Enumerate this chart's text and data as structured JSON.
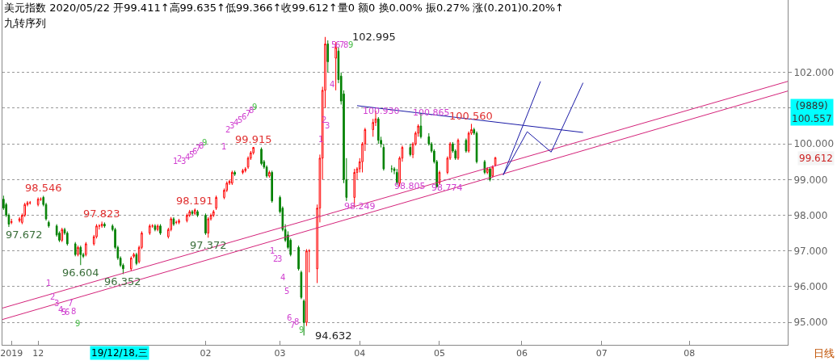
{
  "chart_data": {
    "type": "candlestick",
    "title": "美元指数 2020/05/22 开99.411↑高99.635↑低99.366↑收99.612↑量0 额0 换0.00% 振0.27% 涨(0.201)0.20%↑",
    "subtitle": "九转序列",
    "x": [
      "2019-11-19",
      "2019-11-20",
      "2019-11-21",
      "2019-11-22",
      "2019-11-25",
      "2019-11-26",
      "2019-11-27",
      "2019-11-28",
      "2019-11-29",
      "2019-12-02",
      "2019-12-03",
      "2019-12-04",
      "2019-12-05",
      "2019-12-06",
      "2019-12-09",
      "2019-12-10",
      "2019-12-11",
      "2019-12-12",
      "2019-12-13",
      "2019-12-16",
      "2019-12-17",
      "2019-12-18",
      "2019-12-19",
      "2019-12-20",
      "2019-12-23",
      "2019-12-24",
      "2019-12-25",
      "2019-12-26",
      "2019-12-27",
      "2019-12-30",
      "2019-12-31",
      "2020-01-01",
      "2020-01-02",
      "2020-01-03",
      "2020-01-06",
      "2020-01-07",
      "2020-01-08",
      "2020-01-09",
      "2020-01-10",
      "2020-01-13",
      "2020-01-14",
      "2020-01-15",
      "2020-01-16",
      "2020-01-17",
      "2020-01-20",
      "2020-01-21",
      "2020-01-22",
      "2020-01-23",
      "2020-01-24",
      "2020-01-27",
      "2020-01-28",
      "2020-01-29",
      "2020-01-30",
      "2020-01-31",
      "2020-02-03",
      "2020-02-04",
      "2020-02-05",
      "2020-02-06",
      "2020-02-07",
      "2020-02-10",
      "2020-02-11",
      "2020-02-12",
      "2020-02-13",
      "2020-02-14",
      "2020-02-17",
      "2020-02-18",
      "2020-02-19",
      "2020-02-20",
      "2020-02-21",
      "2020-02-24",
      "2020-02-25",
      "2020-02-26",
      "2020-02-27",
      "2020-02-28",
      "2020-03-02",
      "2020-03-03",
      "2020-03-04",
      "2020-03-05",
      "2020-03-06",
      "2020-03-09",
      "2020-03-10",
      "2020-03-11",
      "2020-03-12",
      "2020-03-13",
      "2020-03-16",
      "2020-03-17",
      "2020-03-18",
      "2020-03-19",
      "2020-03-20",
      "2020-03-23",
      "2020-03-24",
      "2020-03-25",
      "2020-03-26",
      "2020-03-27",
      "2020-03-30",
      "2020-03-31",
      "2020-04-01",
      "2020-04-02",
      "2020-04-03",
      "2020-04-06",
      "2020-04-07",
      "2020-04-08",
      "2020-04-09",
      "2020-04-10",
      "2020-04-13",
      "2020-04-14",
      "2020-04-15",
      "2020-04-16",
      "2020-04-17",
      "2020-04-20",
      "2020-04-21",
      "2020-04-22",
      "2020-04-23",
      "2020-04-24",
      "2020-04-27",
      "2020-04-28",
      "2020-04-29",
      "2020-04-30",
      "2020-05-01",
      "2020-05-04",
      "2020-05-05",
      "2020-05-06",
      "2020-05-07",
      "2020-05-08",
      "2020-05-11",
      "2020-05-12",
      "2020-05-13",
      "2020-05-14",
      "2020-05-15",
      "2020-05-18",
      "2020-05-19",
      "2020-05-20",
      "2020-05-21",
      "2020-05-22"
    ],
    "ohlc": [
      [
        98.45,
        98.55,
        98.15,
        98.2
      ],
      [
        98.3,
        98.35,
        97.95,
        98.0
      ],
      [
        98.0,
        98.05,
        97.672,
        97.75
      ],
      [
        97.8,
        97.9,
        97.75,
        97.82
      ],
      [
        97.85,
        97.95,
        97.8,
        97.9
      ],
      [
        97.8,
        98.05,
        97.75,
        98.0
      ],
      [
        98.0,
        98.35,
        97.95,
        98.3
      ],
      [
        98.3,
        98.4,
        98.25,
        98.35
      ],
      [
        98.35,
        98.4,
        98.3,
        98.35
      ],
      [
        98.3,
        98.5,
        98.25,
        98.45
      ],
      [
        98.45,
        98.5,
        98.4,
        98.45
      ],
      [
        98.5,
        98.546,
        98.25,
        98.3
      ],
      [
        98.3,
        98.35,
        97.85,
        97.9
      ],
      [
        97.8,
        97.85,
        97.65,
        97.7
      ],
      [
        97.7,
        97.75,
        97.4,
        97.45
      ],
      [
        97.5,
        97.55,
        97.25,
        97.3
      ],
      [
        97.3,
        97.65,
        97.25,
        97.6
      ],
      [
        97.6,
        97.65,
        97.45,
        97.5
      ],
      [
        97.5,
        97.55,
        97.15,
        97.2
      ],
      [
        97.2,
        97.25,
        96.85,
        96.9
      ],
      [
        96.9,
        97.15,
        96.85,
        97.1
      ],
      [
        97.1,
        97.15,
        96.604,
        96.9
      ],
      [
        96.9,
        96.95,
        96.8,
        96.85
      ],
      [
        96.9,
        97.25,
        96.85,
        97.2
      ],
      [
        97.2,
        97.45,
        97.15,
        97.4
      ],
      [
        97.4,
        97.75,
        97.35,
        97.7
      ],
      [
        97.7,
        97.75,
        97.6,
        97.7
      ],
      [
        97.7,
        97.823,
        97.65,
        97.75
      ],
      [
        97.75,
        97.8,
        97.65,
        97.7
      ],
      [
        97.7,
        97.75,
        97.55,
        97.6
      ],
      [
        97.6,
        97.65,
        97.05,
        97.1
      ],
      [
        97.1,
        97.15,
        96.75,
        96.8
      ],
      [
        96.8,
        96.85,
        96.55,
        96.6
      ],
      [
        96.6,
        96.65,
        96.352,
        96.5
      ],
      [
        96.5,
        96.85,
        96.45,
        96.8
      ],
      [
        96.85,
        96.95,
        96.8,
        96.9
      ],
      [
        96.9,
        96.95,
        96.6,
        96.65
      ],
      [
        96.7,
        97.15,
        96.65,
        97.1
      ],
      [
        97.1,
        97.55,
        97.05,
        97.5
      ],
      [
        97.5,
        97.75,
        97.45,
        97.7
      ],
      [
        97.7,
        97.75,
        97.65,
        97.7
      ],
      [
        97.7,
        97.75,
        97.55,
        97.6
      ],
      [
        97.6,
        97.75,
        97.55,
        97.7
      ],
      [
        97.7,
        97.75,
        97.45,
        97.5
      ],
      [
        97.4,
        97.65,
        97.35,
        97.6
      ],
      [
        97.6,
        97.95,
        97.55,
        97.9
      ],
      [
        97.9,
        97.95,
        97.7,
        97.75
      ],
      [
        97.8,
        97.85,
        97.75,
        97.8
      ],
      [
        97.8,
        97.9,
        97.75,
        97.85
      ],
      [
        97.85,
        98.05,
        97.8,
        98.0
      ],
      [
        98.0,
        98.15,
        97.95,
        98.1
      ],
      [
        98.1,
        98.15,
        98.0,
        98.05
      ],
      [
        98.05,
        98.191,
        98.0,
        98.15
      ],
      [
        98.1,
        98.15,
        97.95,
        98.0
      ],
      [
        98.0,
        98.05,
        97.45,
        97.5
      ],
      [
        97.5,
        97.95,
        97.372,
        97.9
      ],
      [
        97.9,
        98.05,
        97.85,
        98.0
      ],
      [
        98.0,
        98.15,
        97.95,
        98.1
      ],
      [
        98.2,
        98.55,
        98.15,
        98.5
      ],
      [
        98.5,
        98.75,
        98.45,
        98.7
      ],
      [
        98.7,
        98.95,
        98.65,
        98.9
      ],
      [
        98.9,
        99.0,
        98.85,
        98.95
      ],
      [
        98.9,
        99.25,
        98.85,
        99.2
      ],
      [
        99.2,
        99.25,
        99.1,
        99.15
      ],
      [
        99.2,
        99.3,
        99.15,
        99.25
      ],
      [
        99.25,
        99.35,
        99.2,
        99.3
      ],
      [
        99.35,
        99.65,
        99.3,
        99.6
      ],
      [
        99.6,
        99.8,
        99.55,
        99.75
      ],
      [
        99.75,
        99.915,
        99.7,
        99.9
      ],
      [
        99.85,
        99.9,
        99.4,
        99.45
      ],
      [
        99.5,
        99.55,
        99.3,
        99.35
      ],
      [
        99.35,
        99.4,
        99.05,
        99.1
      ],
      [
        99.1,
        99.25,
        99.05,
        99.2
      ],
      [
        99.2,
        99.25,
        98.35,
        98.4
      ],
      [
        98.5,
        98.55,
        98.05,
        98.1
      ],
      [
        98.2,
        98.25,
        97.55,
        97.6
      ],
      [
        97.6,
        97.75,
        97.25,
        97.3
      ],
      [
        97.45,
        97.55,
        97.05,
        97.1
      ],
      [
        97.3,
        97.35,
        96.85,
        96.9
      ],
      [
        97.1,
        97.15,
        96.45,
        96.5
      ],
      [
        96.4,
        96.45,
        95.65,
        95.7
      ],
      [
        95.6,
        95.65,
        94.632,
        95.0
      ],
      [
        95.0,
        97.05,
        94.9,
        97.0
      ],
      [
        97.0,
        97.05,
        96.4,
        97.0
      ],
      [
        96.5,
        98.3,
        96.1,
        98.2
      ],
      [
        98.2,
        99.7,
        97.8,
        99.6
      ],
      [
        99.6,
        101.6,
        99.0,
        101.5
      ],
      [
        101.5,
        102.995,
        101.0,
        102.8
      ],
      [
        102.8,
        102.9,
        102.0,
        102.3
      ],
      [
        102.4,
        102.85,
        101.5,
        102.7
      ],
      [
        102.6,
        102.7,
        101.7,
        101.8
      ],
      [
        101.9,
        102.0,
        101.1,
        101.2
      ],
      [
        101.4,
        101.5,
        98.9,
        99.0
      ],
      [
        99.0,
        99.6,
        98.4,
        98.5
      ],
      [
        98.5,
        99.3,
        98.249,
        99.2
      ],
      [
        99.2,
        99.35,
        99.0,
        99.3
      ],
      [
        99.3,
        99.6,
        99.2,
        99.5
      ],
      [
        99.5,
        100.05,
        99.2,
        100.0
      ],
      [
        100.0,
        100.45,
        99.8,
        100.4
      ],
      [
        100.4,
        100.7,
        100.2,
        100.6
      ],
      [
        100.6,
        100.93,
        100.5,
        100.7
      ],
      [
        100.7,
        100.75,
        100.0,
        100.1
      ],
      [
        100.1,
        100.2,
        99.9,
        100.0
      ],
      [
        99.9,
        100.0,
        99.25,
        99.3
      ],
      [
        99.3,
        99.4,
        99.2,
        99.3
      ],
      [
        99.3,
        99.35,
        99.15,
        99.25
      ],
      [
        99.2,
        99.3,
        98.85,
        98.9
      ],
      [
        98.9,
        99.65,
        98.805,
        99.6
      ],
      [
        99.6,
        99.95,
        99.5,
        99.9
      ],
      [
        99.9,
        100.0,
        99.65,
        99.7
      ],
      [
        99.7,
        100.05,
        99.6,
        100.0
      ],
      [
        100.0,
        100.35,
        99.95,
        100.3
      ],
      [
        100.3,
        100.55,
        100.2,
        100.5
      ],
      [
        100.5,
        100.865,
        100.15,
        100.2
      ],
      [
        100.2,
        100.3,
        99.95,
        100.0
      ],
      [
        100.0,
        100.05,
        99.75,
        99.8
      ],
      [
        99.8,
        99.85,
        99.45,
        99.5
      ],
      [
        99.5,
        99.55,
        98.774,
        98.8
      ],
      [
        98.9,
        99.25,
        98.85,
        99.2
      ],
      [
        99.2,
        99.65,
        99.15,
        99.6
      ],
      [
        99.6,
        100.05,
        99.55,
        100.0
      ],
      [
        100.0,
        100.05,
        99.75,
        99.8
      ],
      [
        99.8,
        99.85,
        99.55,
        99.6
      ],
      [
        99.6,
        100.15,
        99.55,
        100.1
      ],
      [
        100.1,
        100.15,
        99.75,
        99.8
      ],
      [
        99.8,
        100.35,
        99.75,
        100.3
      ],
      [
        100.3,
        100.56,
        100.25,
        100.4
      ],
      [
        100.4,
        100.45,
        100.25,
        100.3
      ],
      [
        100.3,
        100.35,
        99.45,
        99.5
      ],
      [
        99.5,
        99.55,
        99.15,
        99.2
      ],
      [
        99.2,
        99.35,
        99.15,
        99.3
      ],
      [
        99.3,
        99.35,
        98.95,
        99.0
      ],
      [
        99.1,
        99.4,
        99.05,
        99.35
      ],
      [
        99.411,
        99.635,
        99.366,
        99.612
      ]
    ],
    "series": [
      {
        "type": "line",
        "color": "#d4237a",
        "x": [
          "2019-11-18T14:00",
          "2020-09-09"
        ],
        "values": [
          95.4,
          101.75
        ]
      },
      {
        "type": "line",
        "color": "#d4237a",
        "x": [
          "2019-11-18T14:00",
          "2020-09-09"
        ],
        "values": [
          95.08,
          101.48
        ]
      },
      {
        "type": "line",
        "color": "#1a1aa6",
        "x": [
          "2020-03-31",
          "2020-06-24"
        ],
        "values": [
          101.07,
          100.32
        ]
      },
      {
        "type": "line",
        "color": "#1a1aa6",
        "x": [
          "2020-05-25",
          "2020-06-08"
        ],
        "values": [
          99.13,
          101.75
        ]
      },
      {
        "type": "line",
        "color": "#1a1aa6",
        "x": [
          "2020-05-25",
          "2020-06-03"
        ],
        "values": [
          99.13,
          100.34
        ]
      },
      {
        "type": "line",
        "color": "#1a1aa6",
        "x": [
          "2020-06-03",
          "2020-06-12"
        ],
        "values": [
          100.34,
          99.77
        ]
      },
      {
        "type": "line",
        "color": "#1a1aa6",
        "x": [
          "2020-06-12",
          "2020-06-24"
        ],
        "values": [
          99.77,
          101.71
        ]
      }
    ],
    "annotations": [
      "(9889)\n100.557",
      "99.612",
      "19/12/18,三",
      "日线",
      "1",
      "2",
      "3",
      "4",
      "5",
      "6",
      "7",
      "8",
      "9",
      "1",
      "2",
      "3",
      "4",
      "5",
      "6",
      "7",
      "8",
      "9",
      "1",
      "2",
      "3",
      "4",
      "5",
      "6",
      "7",
      "8",
      "9",
      "1",
      "2",
      "3",
      "4",
      "5",
      "6",
      "7",
      "8",
      "9",
      "1",
      "2",
      "3",
      "4",
      "5",
      "6",
      "7",
      "8",
      "9",
      {
        "text": "97.672",
        "x": "2019-11-21",
        "y": 97.672
      },
      {
        "text": "98.546",
        "x": "2019-12-04",
        "y": 98.546
      },
      {
        "text": "96.604",
        "x": "2019-12-18",
        "y": 96.604
      },
      {
        "text": "97.823",
        "x": "2019-12-26",
        "y": 97.823
      },
      {
        "text": "96.352",
        "x": "2020-01-03",
        "y": 96.352
      },
      {
        "text": "98.191",
        "x": "2020-01-30",
        "y": 98.191
      },
      {
        "text": "97.372",
        "x": "2020-02-04",
        "y": 97.372
      },
      {
        "text": "99.915",
        "x": "2020-02-21",
        "y": 99.915
      },
      {
        "text": "94.632",
        "x": "2020-03-11",
        "y": 94.632
      },
      {
        "text": "102.995",
        "x": "2020-03-19",
        "y": 102.995
      },
      {
        "text": "98.249",
        "x": "2020-04-01",
        "y": 98.249
      },
      {
        "text": "100.930",
        "x": "2020-04-09",
        "y": 100.93
      },
      {
        "text": "98.805",
        "x": "2020-04-20",
        "y": 98.805
      },
      {
        "text": "100.865",
        "x": "2020-04-28",
        "y": 100.865
      },
      {
        "text": "98.774",
        "x": "2020-05-04",
        "y": 98.774
      },
      {
        "text": "100.560",
        "x": "2020-05-13",
        "y": 100.56
      }
    ],
    "xlim": [
      "2019-11-18T14:00",
      "2020-09-09"
    ],
    "ylim": [
      94.37,
      104.03
    ],
    "xticks": [
      {
        "value": "2019-11-22",
        "label": "2019"
      },
      {
        "value": "2019-12-02",
        "label": "12"
      },
      {
        "value": "2020-02-03",
        "label": "02"
      },
      {
        "value": "2020-03-02",
        "label": "03"
      },
      {
        "value": "2020-04-01",
        "label": "04"
      },
      {
        "value": "2020-05-01",
        "label": "05"
      },
      {
        "value": "2020-06-01",
        "label": "06"
      },
      {
        "value": "2020-07-01",
        "label": "07"
      },
      {
        "value": "2020-08-03",
        "label": "08"
      }
    ],
    "yticks": [
      {
        "value": 95,
        "label": "95.000"
      },
      {
        "value": 96,
        "label": "96.000"
      },
      {
        "value": 97,
        "label": "97.000"
      },
      {
        "value": 98,
        "label": "98.000"
      },
      {
        "value": 99,
        "label": "99.000"
      },
      {
        "value": 100,
        "label": "100.000"
      },
      {
        "value": 101,
        "label": null
      },
      {
        "value": 102,
        "label": "102.000"
      }
    ],
    "grid": "y"
  }
}
